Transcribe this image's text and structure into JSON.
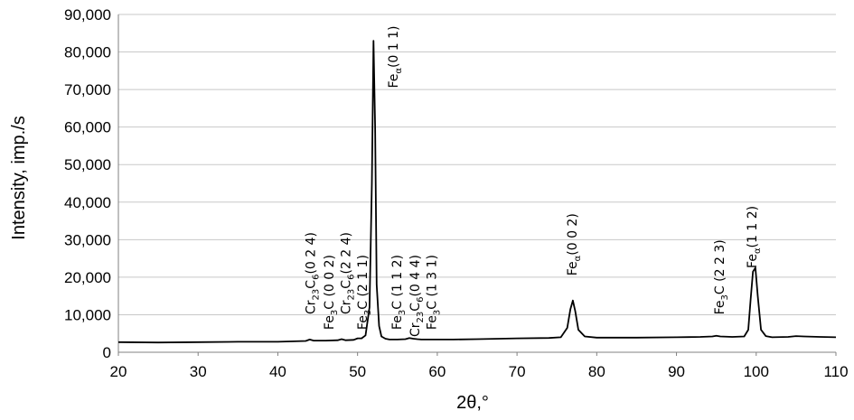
{
  "chart_data": {
    "type": "line",
    "title": "",
    "xlabel": "2θ,°",
    "ylabel": "Intensity, imp./s",
    "xlim": [
      20,
      110
    ],
    "ylim": [
      0,
      90000
    ],
    "x_ticks": [
      20,
      30,
      40,
      50,
      60,
      70,
      80,
      90,
      100,
      110
    ],
    "x_tick_labels": [
      "20",
      "30",
      "40",
      "50",
      "60",
      "70",
      "80",
      "90",
      "100",
      "110"
    ],
    "y_ticks": [
      0,
      10000,
      20000,
      30000,
      40000,
      50000,
      60000,
      70000,
      80000,
      90000
    ],
    "y_tick_labels": [
      "0",
      "10,000",
      "20,000",
      "30,000",
      "40,000",
      "50,000",
      "60,000",
      "70,000",
      "80,000",
      "90,000"
    ],
    "grid": "horizontal",
    "line_color": "#000000",
    "series": [
      {
        "x": [
          20,
          25,
          30,
          35,
          40,
          42,
          43.5,
          44,
          44.5,
          46,
          47.5,
          48,
          48.5,
          49.5,
          50,
          50.5,
          51,
          51.5,
          51.8,
          52.0,
          52.2,
          52.4,
          52.7,
          53.0,
          53.5,
          54,
          55,
          56,
          56.5,
          57,
          57.5,
          58,
          60,
          62,
          65,
          70,
          74,
          75.5,
          76.3,
          76.7,
          77.0,
          77.3,
          77.7,
          78.5,
          80,
          85,
          90,
          93,
          94.5,
          95,
          95.5,
          97,
          98.5,
          99,
          99.3,
          99.6,
          99.9,
          100.2,
          100.6,
          101.2,
          102,
          104,
          105,
          106,
          108,
          110
        ],
        "y": [
          2700,
          2600,
          2700,
          2800,
          2800,
          2900,
          3000,
          3400,
          3100,
          3100,
          3200,
          3500,
          3200,
          3300,
          3700,
          3700,
          4500,
          12000,
          45000,
          83000,
          60000,
          18000,
          7000,
          4200,
          3600,
          3400,
          3400,
          3500,
          3800,
          3600,
          3500,
          3400,
          3400,
          3400,
          3500,
          3700,
          3800,
          4000,
          6500,
          11500,
          13800,
          11000,
          6000,
          4200,
          3900,
          3900,
          4000,
          4100,
          4200,
          4400,
          4200,
          4100,
          4200,
          6000,
          14000,
          21500,
          22500,
          15000,
          6000,
          4300,
          4000,
          4100,
          4300,
          4200,
          4100,
          4000
        ]
      }
    ],
    "annotations": [
      {
        "x": 44.2,
        "y_top": 32000,
        "parts": [
          {
            "t": "Cr"
          },
          {
            "t": "23",
            "sub": true
          },
          {
            "t": "C"
          },
          {
            "t": "6",
            "sub": true
          },
          {
            "t": "(0 2 4)"
          }
        ]
      },
      {
        "x": 46.5,
        "y_top": 26000,
        "parts": [
          {
            "t": "Fe"
          },
          {
            "t": "3",
            "sub": true
          },
          {
            "t": "C (0 0 2)"
          }
        ]
      },
      {
        "x": 48.6,
        "y_top": 32000,
        "parts": [
          {
            "t": "Cr"
          },
          {
            "t": "23",
            "sub": true
          },
          {
            "t": "C"
          },
          {
            "t": "6",
            "sub": true
          },
          {
            "t": "(2 2 4)"
          }
        ]
      },
      {
        "x": 50.7,
        "y_top": 26000,
        "parts": [
          {
            "t": "Fe"
          },
          {
            "t": "3",
            "sub": true
          },
          {
            "t": "C (2 1 1)"
          }
        ]
      },
      {
        "x": 54.6,
        "y_top": 87000,
        "parts": [
          {
            "t": "Fe"
          },
          {
            "t": "α",
            "sub": true
          },
          {
            "t": "(0 1 1)"
          }
        ]
      },
      {
        "x": 55.0,
        "y_top": 26000,
        "parts": [
          {
            "t": "Fe"
          },
          {
            "t": "3",
            "sub": true
          },
          {
            "t": "C (1 1 2)"
          }
        ]
      },
      {
        "x": 57.3,
        "y_top": 26000,
        "parts": [
          {
            "t": "Cr"
          },
          {
            "t": "23",
            "sub": true
          },
          {
            "t": "C"
          },
          {
            "t": "6",
            "sub": true
          },
          {
            "t": "(0 4 4)"
          }
        ]
      },
      {
        "x": 59.4,
        "y_top": 26000,
        "parts": [
          {
            "t": "Fe"
          },
          {
            "t": "3",
            "sub": true
          },
          {
            "t": "C (1 3 1)"
          }
        ]
      },
      {
        "x": 77.0,
        "y_top": 37000,
        "parts": [
          {
            "t": "Fe"
          },
          {
            "t": "α",
            "sub": true
          },
          {
            "t": "(0 0 2)"
          }
        ]
      },
      {
        "x": 95.5,
        "y_top": 30000,
        "parts": [
          {
            "t": "Fe"
          },
          {
            "t": "3",
            "sub": true
          },
          {
            "t": "C (2 2 3)"
          }
        ]
      },
      {
        "x": 99.6,
        "y_top": 39000,
        "parts": [
          {
            "t": "Fe"
          },
          {
            "t": "α",
            "sub": true
          },
          {
            "t": "(1 1 2)"
          }
        ]
      }
    ]
  }
}
